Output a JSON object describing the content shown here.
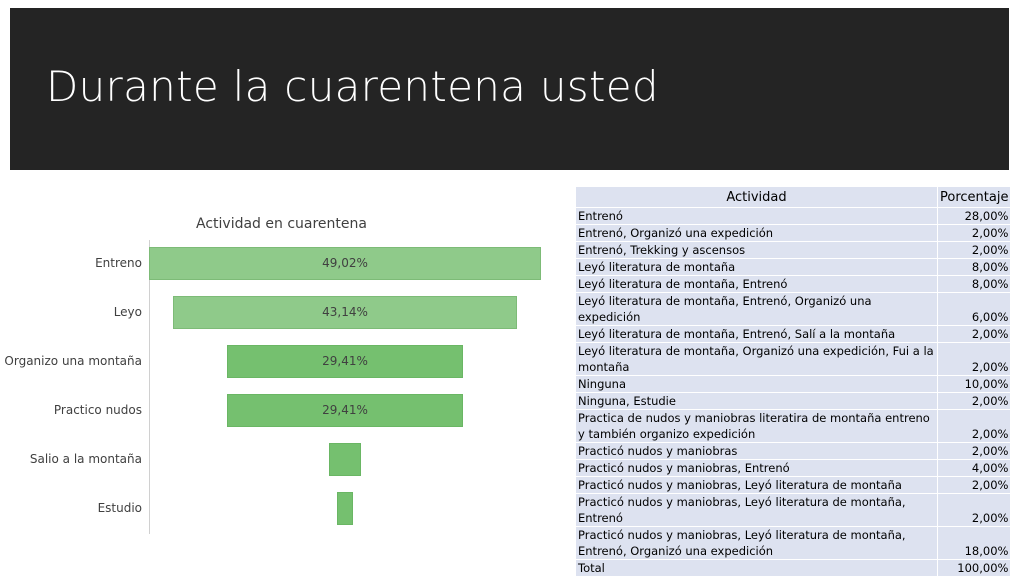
{
  "header": {
    "title": "Durante la cuarentena usted"
  },
  "chart_data": {
    "type": "bar",
    "title": "Actividad en cuarentena",
    "categories": [
      "Entreno",
      "Leyo",
      "Organizo una montaña",
      "Practico nudos",
      "Salio a la montaña",
      "Estudio"
    ],
    "values": [
      49.02,
      43.14,
      29.41,
      29.41,
      3.92,
      1.96
    ],
    "value_labels": [
      "49,02%",
      "43,14%",
      "29,41%",
      "29,41%",
      "",
      ""
    ],
    "style": "funnel",
    "color": "#8fca8a"
  },
  "table": {
    "headers": [
      "Actividad",
      "Porcentaje"
    ],
    "rows": [
      [
        "Entrenó",
        "28,00%"
      ],
      [
        "Entrenó, Organizó una expedición",
        "2,00%"
      ],
      [
        "Entrenó, Trekking y ascensos",
        "2,00%"
      ],
      [
        "Leyó literatura de montaña",
        "8,00%"
      ],
      [
        "Leyó literatura de montaña, Entrenó",
        "8,00%"
      ],
      [
        "Leyó literatura de montaña, Entrenó, Organizó una expedición",
        "6,00%"
      ],
      [
        "Leyó literatura de montaña, Entrenó, Salí a la montaña",
        "2,00%"
      ],
      [
        "Leyó literatura de montaña, Organizó una expedición, Fui a la montaña",
        "2,00%"
      ],
      [
        "Ninguna",
        "10,00%"
      ],
      [
        "Ninguna, Estudie",
        "2,00%"
      ],
      [
        "Practica de nudos y maniobras literatira de montaña entreno y también organizo expedición",
        "2,00%"
      ],
      [
        "Practicó nudos y maniobras",
        "2,00%"
      ],
      [
        "Practicó nudos y maniobras, Entrenó",
        "4,00%"
      ],
      [
        "Practicó nudos y maniobras, Leyó literatura de montaña",
        "2,00%"
      ],
      [
        "Practicó nudos y maniobras, Leyó literatura de montaña, Entrenó",
        "2,00%"
      ],
      [
        "Practicó nudos y maniobras, Leyó literatura de montaña, Entrenó, Organizó una expedición",
        "18,00%"
      ],
      [
        "Total",
        "100,00%"
      ]
    ]
  }
}
